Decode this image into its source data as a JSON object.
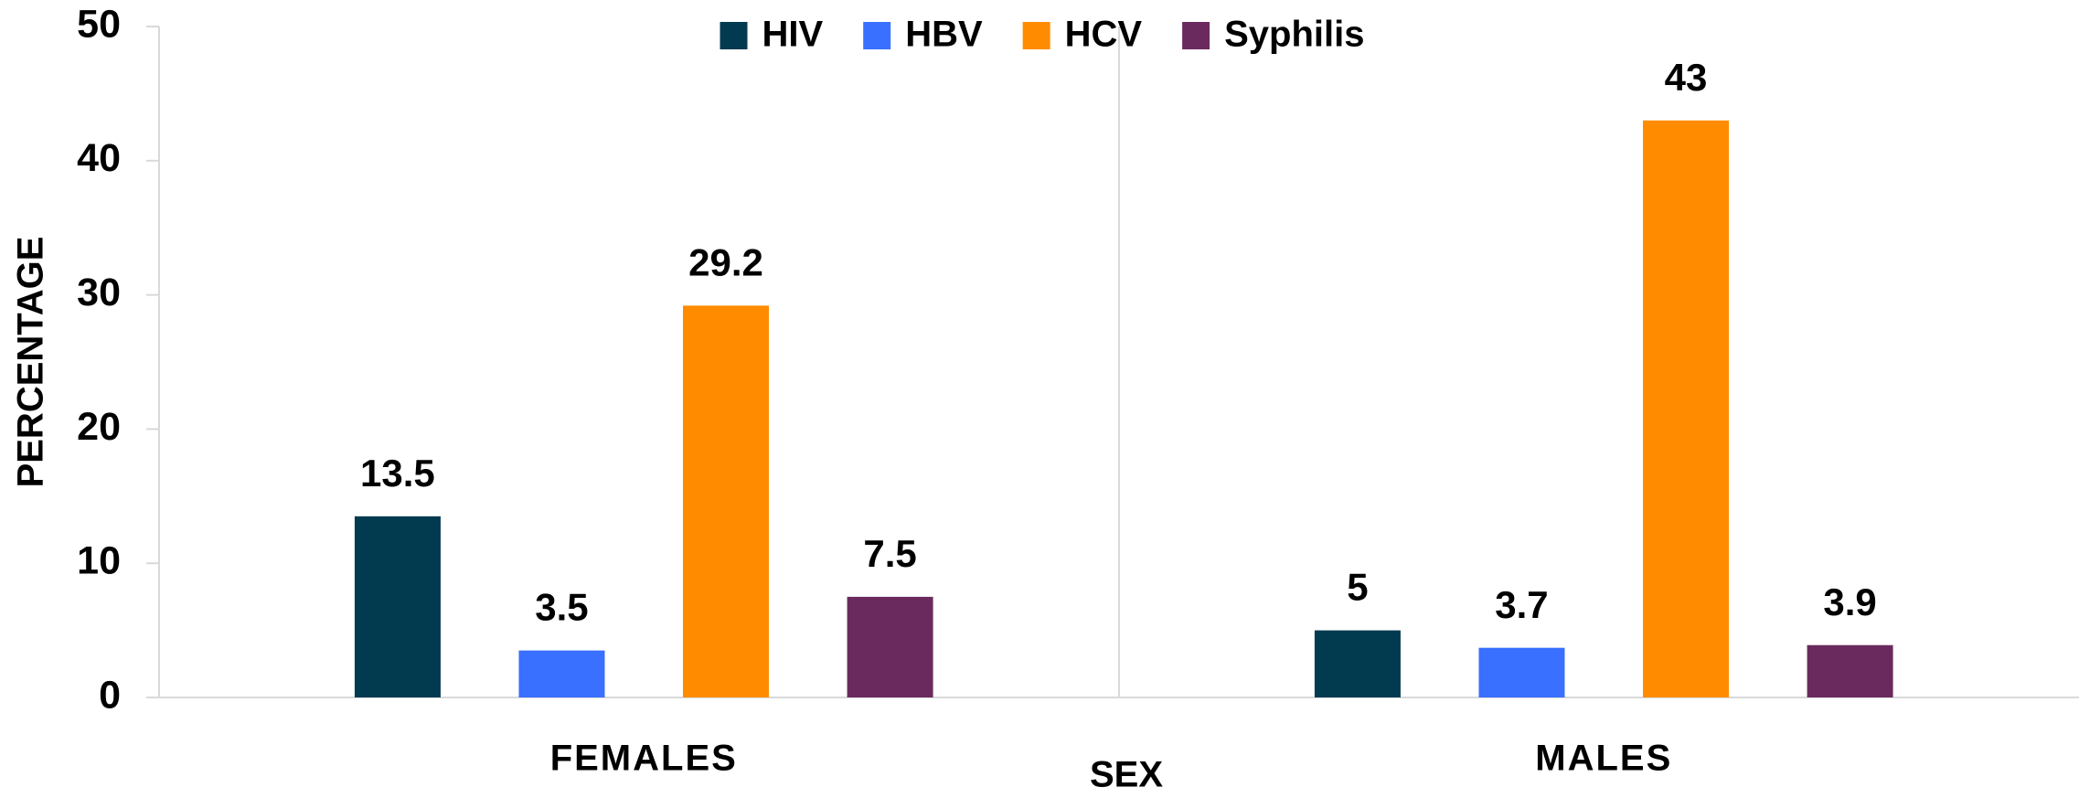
{
  "chart_data": {
    "type": "bar",
    "xlabel": "SEX",
    "ylabel": "PERCENTAGE",
    "categories": [
      "FEMALES",
      "MALES"
    ],
    "series": [
      {
        "name": "HIV",
        "color": "#023a4f",
        "values": [
          13.5,
          5
        ]
      },
      {
        "name": "HBV",
        "color": "#3a70ff",
        "values": [
          3.5,
          3.7
        ]
      },
      {
        "name": "HCV",
        "color": "#ff8c00",
        "values": [
          29.2,
          43
        ]
      },
      {
        "name": "Syphilis",
        "color": "#6b2a5e",
        "values": [
          7.5,
          3.9
        ]
      }
    ],
    "ylim": [
      0,
      50
    ],
    "yticks": [
      0,
      10,
      20,
      30,
      40,
      50
    ],
    "legend": "top"
  }
}
